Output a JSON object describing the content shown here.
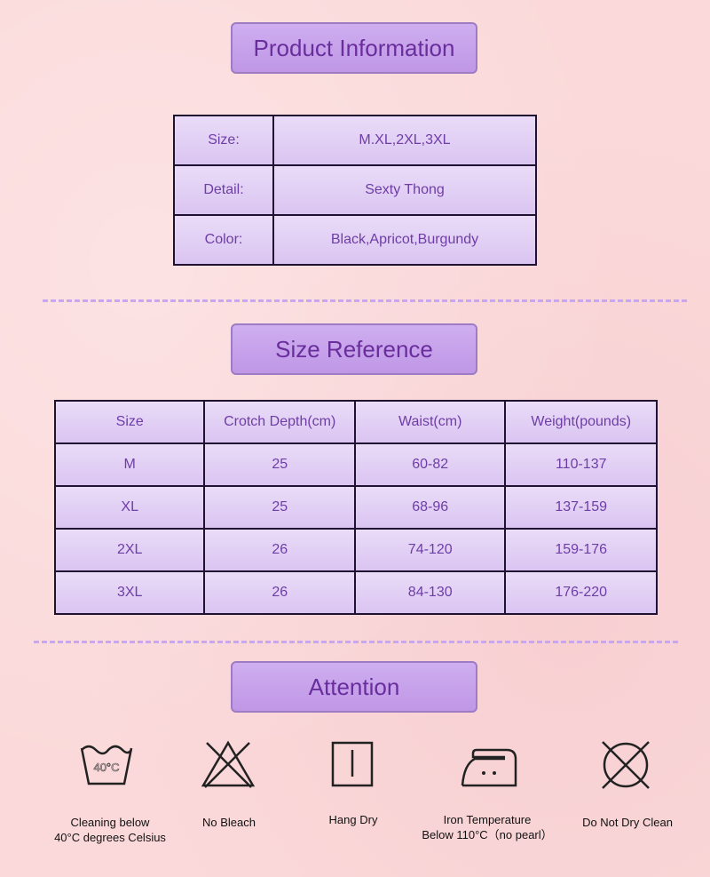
{
  "product_info": {
    "title": "Product Information",
    "rows": [
      {
        "label": "Size:",
        "value": "M.XL,2XL,3XL"
      },
      {
        "label": "Detail:",
        "value": "Sexty Thong"
      },
      {
        "label": "Color:",
        "value": "Black,Apricot,Burgundy"
      }
    ]
  },
  "size_reference": {
    "title": "Size Reference",
    "headers": [
      "Size",
      "Crotch Depth(cm)",
      "Waist(cm)",
      "Weight(pounds)"
    ],
    "rows": [
      [
        "M",
        "25",
        "60-82",
        "110-137"
      ],
      [
        "XL",
        "25",
        "68-96",
        "137-159"
      ],
      [
        "2XL",
        "26",
        "74-120",
        "159-176"
      ],
      [
        "3XL",
        "26",
        "84-130",
        "176-220"
      ]
    ]
  },
  "attention": {
    "title": "Attention",
    "wash_tub_text": "40°C",
    "items": [
      {
        "icon": "wash-40-icon",
        "line1": "Cleaning below",
        "line2": "40°C degrees Celsius"
      },
      {
        "icon": "no-bleach-icon",
        "line1": "No Bleach",
        "line2": ""
      },
      {
        "icon": "hang-dry-icon",
        "line1": "Hang Dry",
        "line2": ""
      },
      {
        "icon": "iron-icon",
        "line1": "Iron Temperature",
        "line2": "Below 110°C（no pearl）"
      },
      {
        "icon": "no-dry-clean-icon",
        "line1": "Do Not Dry Clean",
        "line2": ""
      }
    ]
  },
  "colors": {
    "title_bg": "#c6a2ec",
    "title_text": "#6a2e9c",
    "cell_bg": "#e2cff5",
    "dash": "#c9a7ee",
    "page_bg": "#fbd9da"
  }
}
